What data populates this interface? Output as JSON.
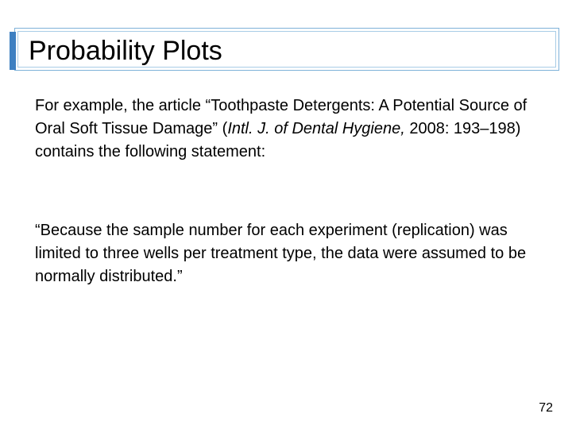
{
  "header": {
    "title": "Probability Plots"
  },
  "body": {
    "paragraph_1": [
      "For example, the article “Toothpaste Detergents: A Potential Source of Oral Soft Tissue Damage” (",
      "Intl. J. of Dental Hygiene,",
      " 2008: 193–198) contains the following statement:"
    ],
    "paragraph_2": "“Because the sample number for each experiment (replication) was limited to three wells per treatment type, the data were assumed to be normally distributed.”"
  },
  "footer": {
    "page_number": "72"
  }
}
